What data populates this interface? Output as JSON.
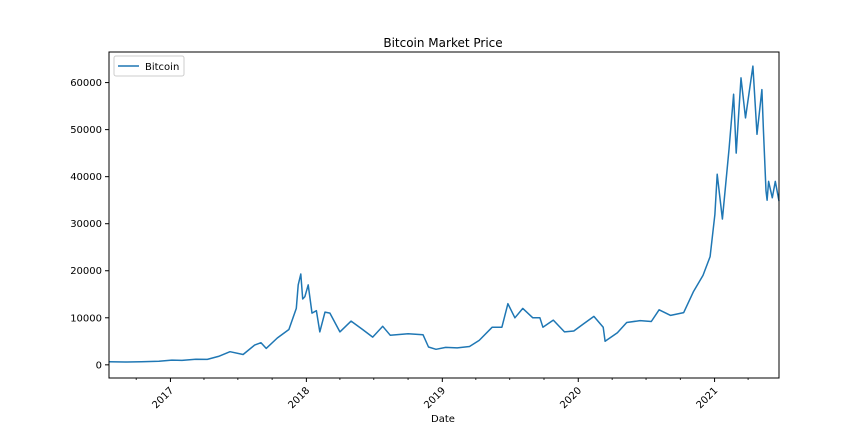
{
  "chart_data": {
    "type": "line",
    "title": "Bitcoin Market Price",
    "xlabel": "Date",
    "ylabel": "",
    "x_axis_type": "date",
    "xlim": [
      "2016-07-20",
      "2021-06-23"
    ],
    "ylim": [
      -2800,
      66500
    ],
    "x_ticks": [
      "2017-01-01",
      "2018-01-01",
      "2019-01-01",
      "2020-01-01",
      "2021-01-01"
    ],
    "x_tick_labels": [
      "2017",
      "2018",
      "2019",
      "2020",
      "2021"
    ],
    "y_ticks": [
      0,
      10000,
      20000,
      30000,
      40000,
      50000,
      60000
    ],
    "y_tick_labels": [
      "0",
      "10000",
      "20000",
      "30000",
      "40000",
      "50000",
      "60000"
    ],
    "grid": false,
    "legend_position": "top-left",
    "series": [
      {
        "name": "Bitcoin",
        "color": "#1f77b4",
        "points": [
          [
            "2016-07-20",
            670
          ],
          [
            "2016-09-01",
            600
          ],
          [
            "2016-10-15",
            640
          ],
          [
            "2016-12-01",
            750
          ],
          [
            "2017-01-05",
            1000
          ],
          [
            "2017-02-01",
            950
          ],
          [
            "2017-03-10",
            1200
          ],
          [
            "2017-04-10",
            1150
          ],
          [
            "2017-05-10",
            1800
          ],
          [
            "2017-06-10",
            2800
          ],
          [
            "2017-07-15",
            2200
          ],
          [
            "2017-08-15",
            4200
          ],
          [
            "2017-09-01",
            4700
          ],
          [
            "2017-09-15",
            3500
          ],
          [
            "2017-10-15",
            5700
          ],
          [
            "2017-11-15",
            7500
          ],
          [
            "2017-12-05",
            12000
          ],
          [
            "2017-12-10",
            17000
          ],
          [
            "2017-12-17",
            19300
          ],
          [
            "2017-12-22",
            14000
          ],
          [
            "2017-12-28",
            14500
          ],
          [
            "2018-01-06",
            17000
          ],
          [
            "2018-01-16",
            11000
          ],
          [
            "2018-01-28",
            11500
          ],
          [
            "2018-02-06",
            7000
          ],
          [
            "2018-02-20",
            11200
          ],
          [
            "2018-03-05",
            11000
          ],
          [
            "2018-04-01",
            7000
          ],
          [
            "2018-05-01",
            9300
          ],
          [
            "2018-06-01",
            7500
          ],
          [
            "2018-06-28",
            5900
          ],
          [
            "2018-07-25",
            8200
          ],
          [
            "2018-08-14",
            6300
          ],
          [
            "2018-10-01",
            6600
          ],
          [
            "2018-11-10",
            6400
          ],
          [
            "2018-11-25",
            3800
          ],
          [
            "2018-12-15",
            3300
          ],
          [
            "2019-01-10",
            3700
          ],
          [
            "2019-02-10",
            3600
          ],
          [
            "2019-03-15",
            3900
          ],
          [
            "2019-04-10",
            5200
          ],
          [
            "2019-05-15",
            8000
          ],
          [
            "2019-06-10",
            8000
          ],
          [
            "2019-06-26",
            13000
          ],
          [
            "2019-07-15",
            10000
          ],
          [
            "2019-08-05",
            12000
          ],
          [
            "2019-09-01",
            10000
          ],
          [
            "2019-09-20",
            10000
          ],
          [
            "2019-09-28",
            8000
          ],
          [
            "2019-10-26",
            9500
          ],
          [
            "2019-11-25",
            7000
          ],
          [
            "2019-12-20",
            7200
          ],
          [
            "2020-01-15",
            8700
          ],
          [
            "2020-02-12",
            10300
          ],
          [
            "2020-03-08",
            8000
          ],
          [
            "2020-03-13",
            5000
          ],
          [
            "2020-04-15",
            6800
          ],
          [
            "2020-05-10",
            9000
          ],
          [
            "2020-06-15",
            9400
          ],
          [
            "2020-07-15",
            9200
          ],
          [
            "2020-08-05",
            11700
          ],
          [
            "2020-09-05",
            10500
          ],
          [
            "2020-10-10",
            11100
          ],
          [
            "2020-11-05",
            15500
          ],
          [
            "2020-12-01",
            19000
          ],
          [
            "2020-12-20",
            23000
          ],
          [
            "2021-01-02",
            32000
          ],
          [
            "2021-01-08",
            40500
          ],
          [
            "2021-01-22",
            31000
          ],
          [
            "2021-02-09",
            46000
          ],
          [
            "2021-02-21",
            57500
          ],
          [
            "2021-02-28",
            45000
          ],
          [
            "2021-03-13",
            61000
          ],
          [
            "2021-03-25",
            52500
          ],
          [
            "2021-04-14",
            63500
          ],
          [
            "2021-04-25",
            49000
          ],
          [
            "2021-05-08",
            58500
          ],
          [
            "2021-05-12",
            50000
          ],
          [
            "2021-05-19",
            37000
          ],
          [
            "2021-05-22",
            35000
          ],
          [
            "2021-05-26",
            39000
          ],
          [
            "2021-06-05",
            35500
          ],
          [
            "2021-06-13",
            39000
          ],
          [
            "2021-06-23",
            34800
          ]
        ]
      }
    ]
  }
}
